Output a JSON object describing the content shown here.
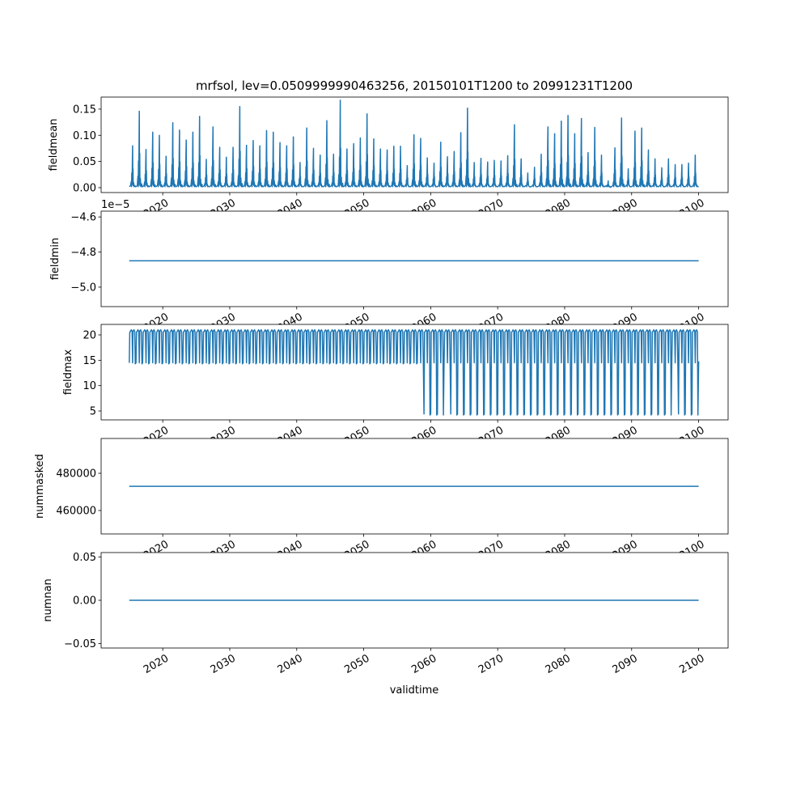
{
  "chart_data": {
    "type": "line",
    "title": "mrfsol, lev=0.0509999990463256, 20150101T1200 to 20991231T1200",
    "xlabel": "validtime",
    "series_color": "#1f77b4",
    "x_range": [
      2010.8,
      2104.4
    ],
    "x_ticks": [
      2020,
      2030,
      2040,
      2050,
      2060,
      2070,
      2080,
      2090,
      2100
    ],
    "x_tick_labels": [
      "2020",
      "2030",
      "2040",
      "2050",
      "2060",
      "2070",
      "2080",
      "2090",
      "2100"
    ],
    "time_span": [
      2015.0,
      2100.0
    ],
    "subplots": [
      {
        "ylabel": "fieldmean",
        "ylim": [
          -0.0093,
          0.173
        ],
        "y_ticks": [
          0.0,
          0.05,
          0.1,
          0.15
        ],
        "y_tick_labels": [
          "0.00",
          "0.05",
          "0.10",
          "0.15"
        ],
        "offset_label": "",
        "baseline": 0.002,
        "peak_years": [
          2015,
          2016,
          2017,
          2018,
          2019,
          2020,
          2021,
          2022,
          2023,
          2024,
          2025,
          2026,
          2027,
          2028,
          2029,
          2030,
          2031,
          2032,
          2033,
          2034,
          2035,
          2036,
          2037,
          2038,
          2039,
          2040,
          2041,
          2042,
          2043,
          2044,
          2045,
          2046,
          2047,
          2048,
          2049,
          2050,
          2051,
          2052,
          2053,
          2054,
          2055,
          2056,
          2057,
          2058,
          2059,
          2060,
          2061,
          2062,
          2063,
          2064,
          2065,
          2066,
          2067,
          2068,
          2069,
          2070,
          2071,
          2072,
          2073,
          2074,
          2075,
          2076,
          2077,
          2078,
          2079,
          2080,
          2081,
          2082,
          2083,
          2084,
          2085,
          2086,
          2087,
          2088,
          2089,
          2090,
          2091,
          2092,
          2093,
          2094,
          2095,
          2096,
          2097,
          2098,
          2099
        ],
        "annual_peaks": [
          0.08,
          0.146,
          0.073,
          0.106,
          0.1,
          0.06,
          0.124,
          0.11,
          0.091,
          0.106,
          0.136,
          0.054,
          0.116,
          0.077,
          0.058,
          0.077,
          0.155,
          0.081,
          0.09,
          0.08,
          0.109,
          0.106,
          0.086,
          0.08,
          0.097,
          0.048,
          0.114,
          0.075,
          0.062,
          0.128,
          0.064,
          0.167,
          0.074,
          0.084,
          0.095,
          0.141,
          0.093,
          0.074,
          0.072,
          0.079,
          0.079,
          0.042,
          0.101,
          0.094,
          0.057,
          0.047,
          0.087,
          0.059,
          0.069,
          0.105,
          0.152,
          0.048,
          0.056,
          0.049,
          0.052,
          0.051,
          0.061,
          0.12,
          0.055,
          0.028,
          0.039,
          0.064,
          0.116,
          0.103,
          0.127,
          0.138,
          0.103,
          0.132,
          0.067,
          0.115,
          0.062,
          0.013,
          0.076,
          0.133,
          0.036,
          0.108,
          0.114,
          0.072,
          0.055,
          0.038,
          0.055,
          0.044,
          0.044,
          0.047,
          0.062
        ]
      },
      {
        "ylabel": "fieldmin",
        "ylim": [
          -5.111,
          -4.567
        ],
        "y_ticks": [
          -5.0,
          -4.8,
          -4.6
        ],
        "y_tick_labels": [
          "−5.0",
          "−4.8",
          "−4.6"
        ],
        "offset_label": "1e−5",
        "constant_value": -4.85
      },
      {
        "ylabel": "fieldmax",
        "ylim": [
          3.25,
          22.07
        ],
        "y_ticks": [
          5,
          10,
          15,
          20
        ],
        "y_tick_labels": [
          "5",
          "10",
          "15",
          "20"
        ],
        "offset_label": "",
        "annual_high": 21.0,
        "annual_low_early": 14.3,
        "annual_low_dry": 4.2,
        "dry_years_start": 2059,
        "wet_years_after_start": [
          2062,
          2096
        ]
      },
      {
        "ylabel": "nummasked",
        "ylim": [
          447400,
          498700
        ],
        "y_ticks": [
          460000,
          480000
        ],
        "y_tick_labels": [
          "460000",
          "480000"
        ],
        "offset_label": "",
        "constant_value": 473000
      },
      {
        "ylabel": "numnan",
        "ylim": [
          -0.055,
          0.055
        ],
        "y_ticks": [
          -0.05,
          0.0,
          0.05
        ],
        "y_tick_labels": [
          "−0.05",
          "0.00",
          "0.05"
        ],
        "offset_label": "",
        "constant_value": 0.0
      }
    ]
  }
}
